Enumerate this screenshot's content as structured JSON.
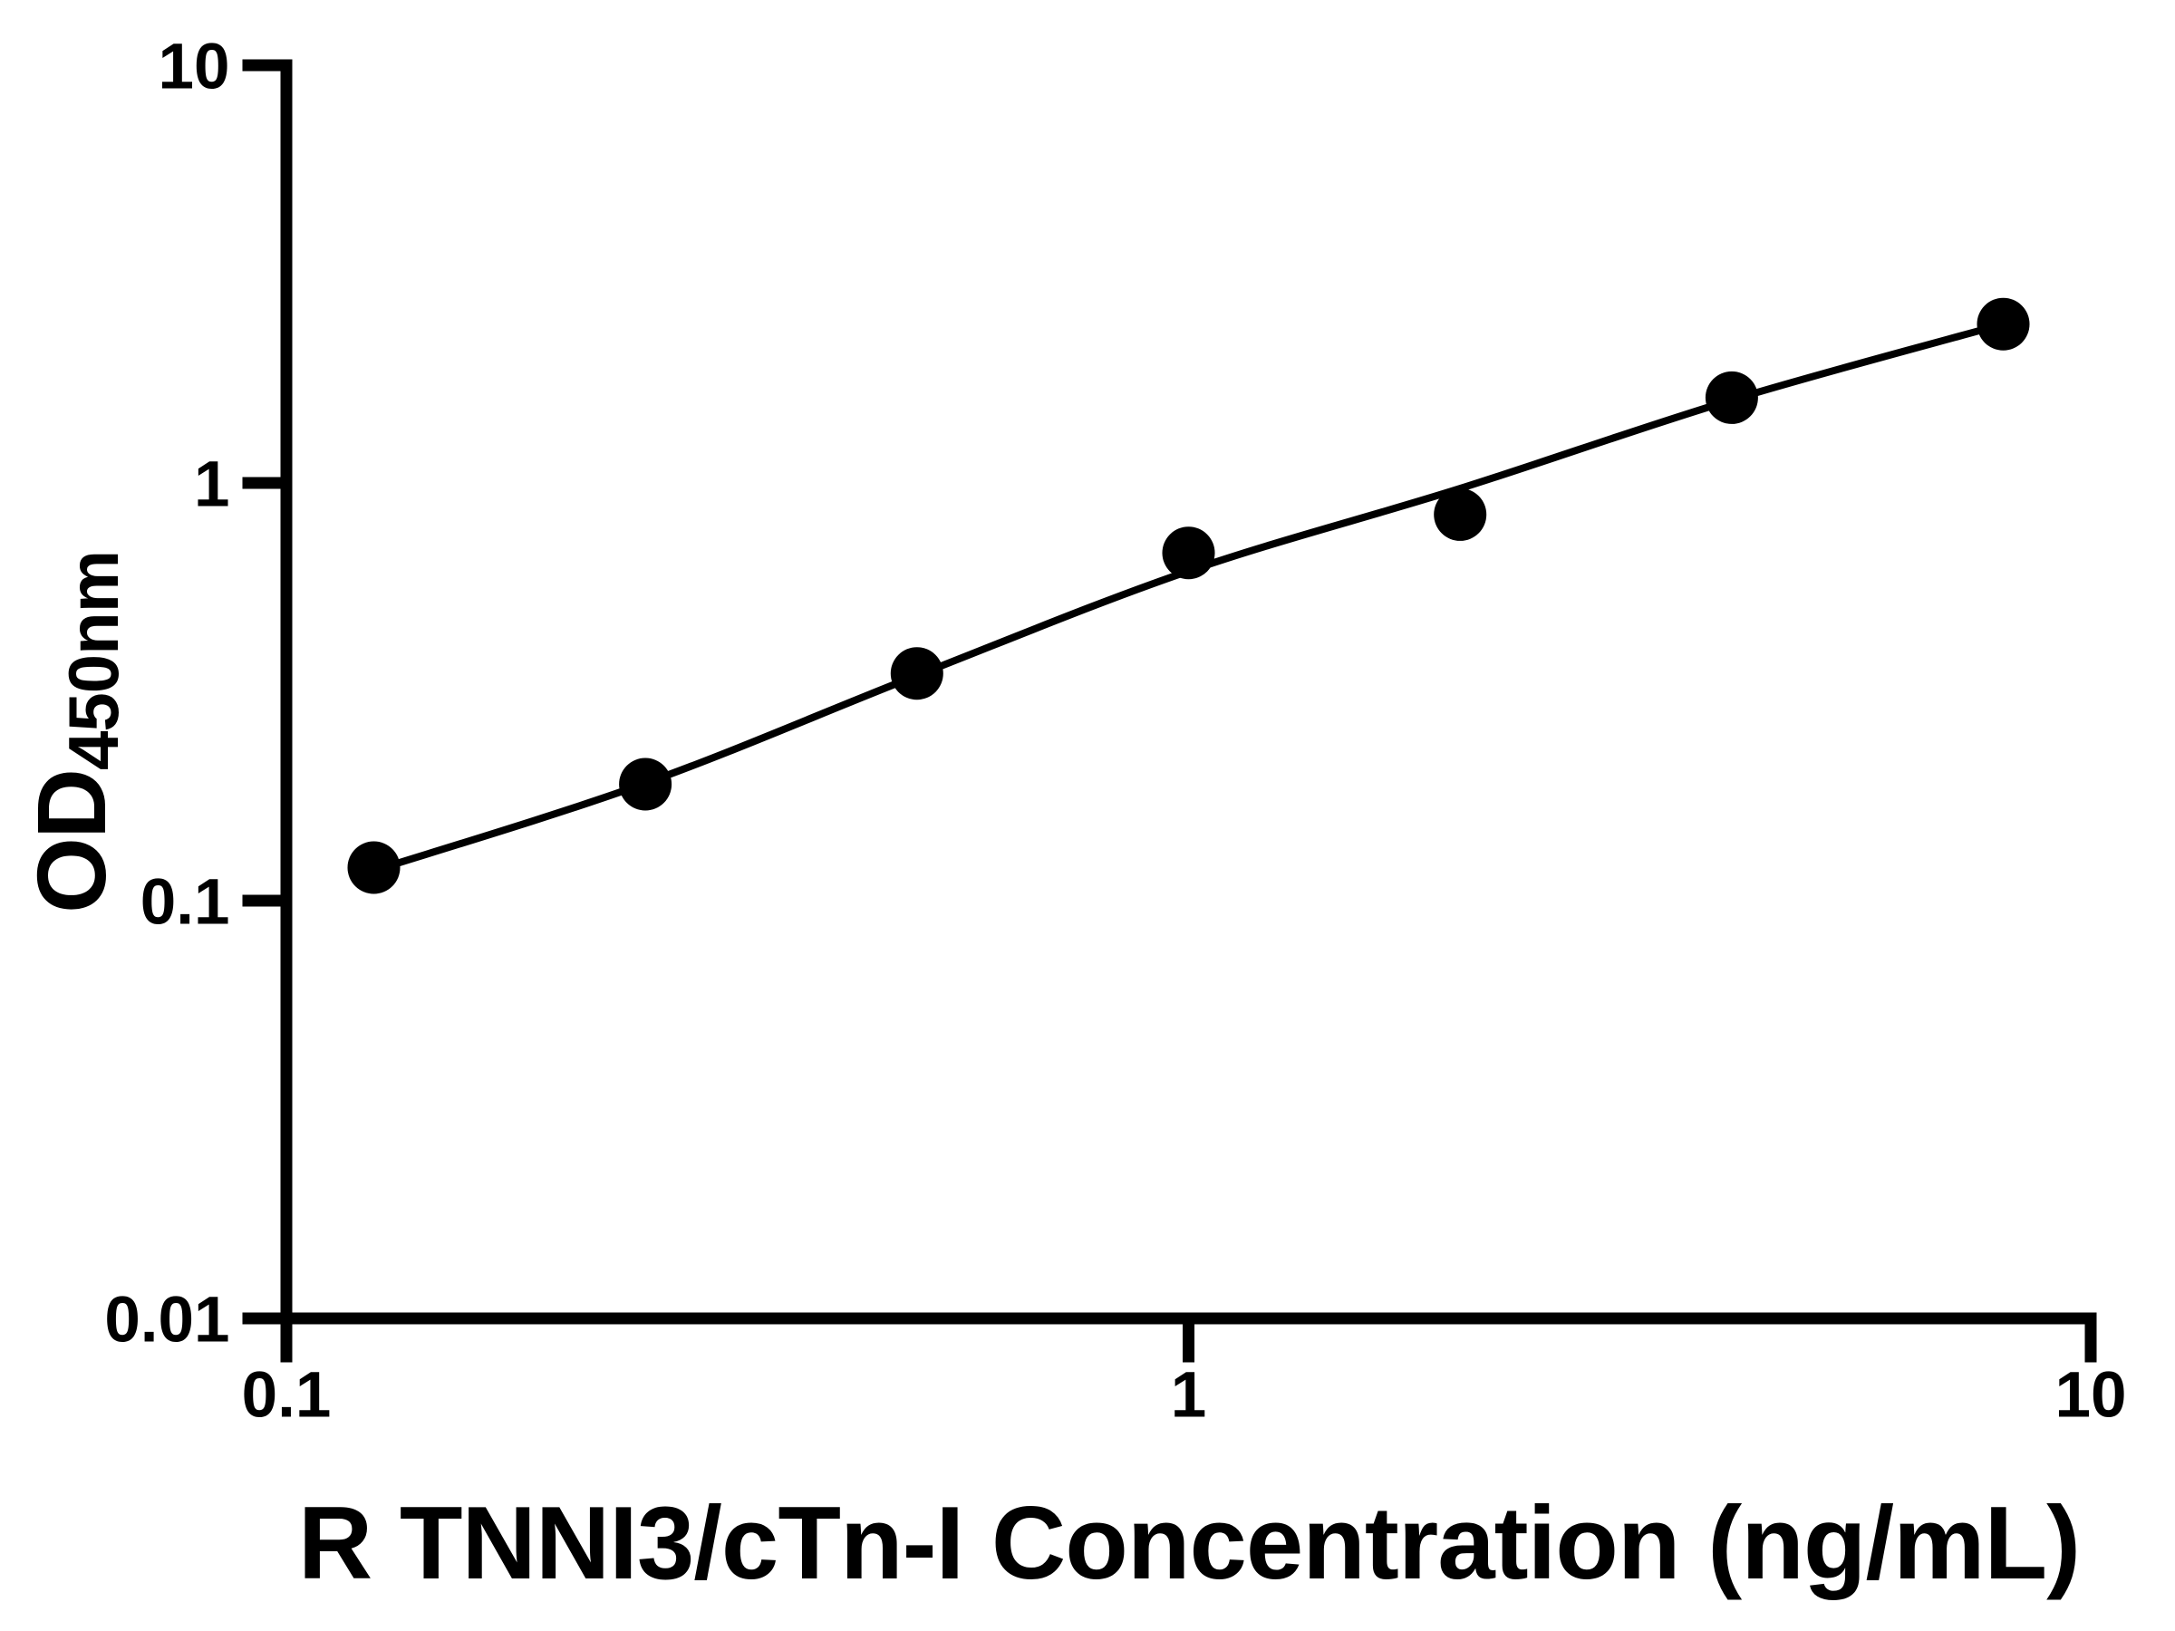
{
  "figure": {
    "background_color": "#ffffff",
    "ink_color": "#000000"
  },
  "chart_data": {
    "type": "scatter",
    "title": "",
    "xlabel": "R TNNI3/cTn-I Concentration (ng/mL)",
    "ylabel_main": "OD",
    "ylabel_sub": "450nm",
    "x_scale": "log",
    "y_scale": "log",
    "xlim": [
      0.1,
      10
    ],
    "ylim": [
      0.01,
      10
    ],
    "x_ticks": [
      0.1,
      1,
      10
    ],
    "x_tick_labels": [
      "0.1",
      "1",
      "10"
    ],
    "y_ticks": [
      0.01,
      0.1,
      1,
      10
    ],
    "y_tick_labels": [
      "0.01",
      "0.1",
      "1",
      "10"
    ],
    "grid": false,
    "legend": false,
    "series": [
      {
        "name": "standard-points",
        "marker": "circle",
        "color": "#000000",
        "x": [
          0.125,
          0.25,
          0.5,
          1,
          2,
          4,
          8
        ],
        "y": [
          0.12,
          0.19,
          0.35,
          0.68,
          0.84,
          1.6,
          2.4
        ]
      }
    ],
    "fit_line": {
      "name": "fitted-curve",
      "color": "#000000",
      "x": [
        0.125,
        0.25,
        0.5,
        1,
        2,
        4,
        8
      ],
      "y": [
        0.118,
        0.191,
        0.346,
        0.615,
        0.97,
        1.58,
        2.4
      ]
    }
  }
}
